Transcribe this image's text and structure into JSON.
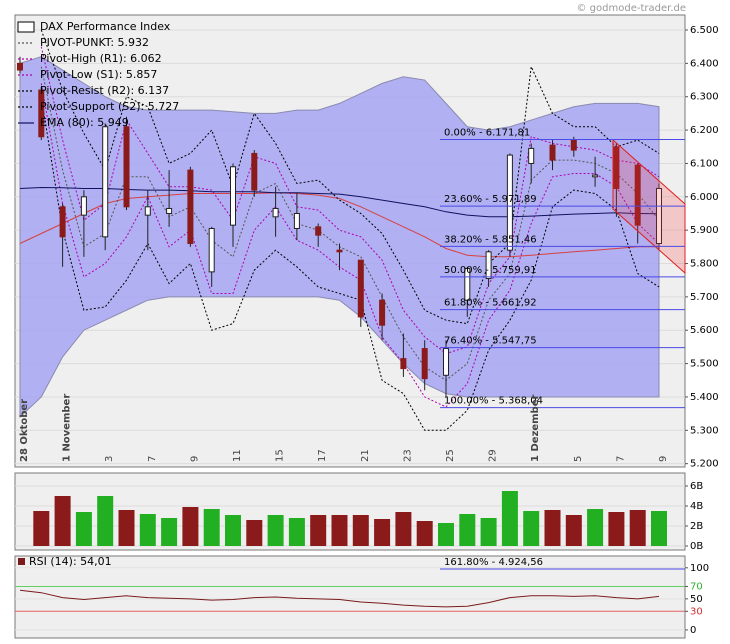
{
  "watermark": "© godmode-trader.de",
  "chart_data": [
    {
      "type": "candlestick",
      "categories": [
        "28 Oktober",
        null,
        "1 November",
        null,
        "3",
        null,
        "7",
        null,
        "9",
        null,
        "11",
        null,
        "15",
        null,
        "17",
        null,
        "21",
        null,
        "23",
        null,
        "25",
        null,
        "29",
        null,
        "1 Dezember",
        null,
        "5",
        null,
        "7",
        null,
        "9"
      ],
      "ylim": [
        5190,
        6545
      ],
      "yticks": [
        {
          "value": 6500,
          "label": "6.500"
        },
        {
          "value": 6400,
          "label": "6.400"
        },
        {
          "value": 6300,
          "label": "6.300"
        },
        {
          "value": 6200,
          "label": "6.200"
        },
        {
          "value": 6100,
          "label": "6.100"
        },
        {
          "value": 6000,
          "label": "6.000"
        },
        {
          "value": 5900,
          "label": "5.900"
        },
        {
          "value": 5800,
          "label": "5.800"
        },
        {
          "value": 5700,
          "label": "5.700"
        },
        {
          "value": 5600,
          "label": "5.600"
        },
        {
          "value": 5500,
          "label": "5.500"
        },
        {
          "value": 5400,
          "label": "5.400"
        },
        {
          "value": 5300,
          "label": "5.300"
        },
        {
          "value": 5200,
          "label": "5.200"
        }
      ],
      "grid": true,
      "candles": {
        "name": "DAX Performance Index",
        "up_color": "#22b022",
        "down_color": "#8b1a1a",
        "open": [
          6400,
          6320,
          5970,
          5945,
          5880,
          6210,
          5945,
          5950,
          6080,
          5775,
          5915,
          6130,
          5940,
          5905,
          5910,
          5840,
          5810,
          5690,
          5515,
          5545,
          5465,
          5690,
          5755,
          5840,
          6100,
          6155,
          6170,
          6060,
          6150,
          6095,
          5860
        ],
        "high": [
          6420,
          6330,
          5980,
          6020,
          6220,
          6240,
          6020,
          6080,
          6090,
          5910,
          6100,
          6140,
          6030,
          6010,
          5920,
          5860,
          5810,
          5710,
          5590,
          5570,
          5570,
          5790,
          5840,
          6130,
          6160,
          6170,
          6180,
          6120,
          6160,
          6100,
          6040
        ],
        "low": [
          6370,
          6170,
          5790,
          5820,
          5840,
          5960,
          5840,
          5910,
          5850,
          5730,
          5850,
          6000,
          5880,
          5870,
          5850,
          5780,
          5610,
          5570,
          5460,
          5420,
          5400,
          5640,
          5730,
          5820,
          6040,
          6080,
          6120,
          6030,
          5940,
          5860,
          5840
        ],
        "close": [
          6380,
          6180,
          5880,
          6000,
          6210,
          5970,
          5970,
          5965,
          5860,
          5905,
          6090,
          6020,
          5965,
          5950,
          5885,
          5835,
          5640,
          5615,
          5485,
          5455,
          5545,
          5785,
          5835,
          6125,
          6145,
          6110,
          6140,
          6065,
          6025,
          5915,
          6025
        ]
      },
      "band": {
        "color": "#a4a4f2",
        "upper": [
          6400,
          6420,
          6380,
          6340,
          6300,
          6270,
          6260,
          6260,
          6260,
          6260,
          6255,
          6250,
          6250,
          6260,
          6260,
          6280,
          6310,
          6340,
          6360,
          6350,
          6280,
          6210,
          6200,
          6210,
          6230,
          6250,
          6270,
          6280,
          6280,
          6280,
          6270
        ],
        "lower": [
          5340,
          5400,
          5520,
          5600,
          5630,
          5660,
          5690,
          5700,
          5700,
          5700,
          5700,
          5700,
          5700,
          5700,
          5700,
          5690,
          5640,
          5570,
          5500,
          5440,
          5410,
          5400,
          5400,
          5400,
          5400,
          5400,
          5400,
          5400,
          5400,
          5400,
          5400
        ]
      },
      "average": {
        "color": "#d84040",
        "values": [
          5860,
          5890,
          5920,
          5950,
          5980,
          5995,
          6000,
          6005,
          6010,
          6010,
          6010,
          6010,
          6012,
          6010,
          6005,
          5995,
          5970,
          5940,
          5910,
          5880,
          5845,
          5825,
          5820,
          5820,
          5825,
          5830,
          5835,
          5840,
          5845,
          5850,
          5850
        ]
      },
      "series": [
        {
          "name": "PIVOT-PUNKT: 5.932",
          "color": "#555555",
          "dash": "2,2",
          "values": [
            null,
            6390,
            6080,
            5850,
            5890,
            6060,
            6060,
            5940,
            5970,
            5870,
            5820,
            6010,
            6040,
            5920,
            5900,
            5850,
            5820,
            5700,
            5580,
            5490,
            5450,
            5500,
            5690,
            5770,
            6050,
            6110,
            6110,
            6100,
            6070,
            6010,
            5930
          ]
        },
        {
          "name": "Pivot-High (R1): 6.062",
          "color": "#b000b0",
          "dash": "2,2",
          "values": [
            null,
            6450,
            6170,
            5930,
            5980,
            6230,
            6130,
            6030,
            6030,
            6020,
            5930,
            6120,
            6100,
            5970,
            5960,
            5900,
            5880,
            5810,
            5660,
            5580,
            5530,
            5550,
            5740,
            5820,
            6180,
            6160,
            6150,
            6140,
            6110,
            6100,
            6060
          ]
        },
        {
          "name": "Pivot-Low (S1): 5.857",
          "color": "#b000b0",
          "dash": "2,2",
          "values": [
            null,
            6340,
            5980,
            5760,
            5800,
            5880,
            6000,
            5850,
            5900,
            5710,
            5710,
            5900,
            5970,
            5870,
            5840,
            5790,
            5750,
            5580,
            5500,
            5400,
            5370,
            5440,
            5630,
            5720,
            5920,
            6060,
            6070,
            6070,
            6030,
            5920,
            5860
          ]
        },
        {
          "name": "Pivot-Resist (R2): 6.137",
          "color": "#000000",
          "dash": "2,2",
          "values": [
            null,
            6500,
            6320,
            6190,
            6080,
            6300,
            6270,
            6100,
            6130,
            6200,
            6030,
            6250,
            6160,
            6040,
            6050,
            5990,
            5950,
            5890,
            5780,
            5660,
            5630,
            5620,
            5800,
            5860,
            6390,
            6250,
            6210,
            6210,
            6150,
            6170,
            6130
          ]
        },
        {
          "name": "Pivot-Support (S2): 5.727",
          "color": "#000000",
          "dash": "2,2",
          "values": [
            null,
            6300,
            5900,
            5660,
            5670,
            5750,
            5860,
            5740,
            5800,
            5600,
            5620,
            5780,
            5840,
            5790,
            5730,
            5710,
            5690,
            5450,
            5410,
            5300,
            5300,
            5360,
            5540,
            5630,
            5750,
            5970,
            6020,
            6010,
            5960,
            5770,
            5730
          ]
        },
        {
          "name": "EMA (80): 5.949",
          "color": "#101060",
          "dash": "none",
          "values": [
            6025,
            6028,
            6027,
            6025,
            6025,
            6022,
            6020,
            6020,
            6018,
            6015,
            6015,
            6015,
            6012,
            6012,
            6010,
            6008,
            6000,
            5990,
            5980,
            5970,
            5955,
            5945,
            5940,
            5940,
            5942,
            5945,
            5948,
            5950,
            5952,
            5950,
            5949
          ]
        }
      ],
      "fib_color": "#4a4ae6",
      "fib_levels": [
        {
          "value": 6171.81,
          "label": "0.00% - 6.171,81"
        },
        {
          "value": 5971.89,
          "label": "23.60% - 5.971,89"
        },
        {
          "value": 5851.46,
          "label": "38.20% - 5.851,46"
        },
        {
          "value": 5759.91,
          "label": "50.00% - 5.759,91"
        },
        {
          "value": 5661.92,
          "label": "61.80% - 5.661,92"
        },
        {
          "value": 5547.75,
          "label": "76.40% - 5.547,75"
        },
        {
          "value": 5368.04,
          "label": "100.00% - 5.368,04"
        }
      ]
    },
    {
      "type": "bar",
      "values": [
        null,
        3.5,
        5.0,
        3.4,
        5.0,
        3.6,
        3.2,
        2.8,
        3.9,
        3.7,
        3.1,
        2.6,
        3.1,
        2.8,
        3.1,
        3.1,
        3.1,
        2.7,
        3.4,
        2.5,
        2.3,
        3.2,
        2.8,
        5.5,
        3.5,
        3.6,
        3.1,
        3.7,
        3.4,
        3.6,
        3.5
      ],
      "ylim": [
        -0.4,
        7.3
      ],
      "yticks": [
        {
          "value": 6,
          "label": "6B"
        },
        {
          "value": 4,
          "label": "4B"
        },
        {
          "value": 2,
          "label": "2B"
        },
        {
          "value": 0,
          "label": "0B"
        }
      ],
      "grid": true
    },
    {
      "type": "line",
      "series": [
        {
          "name": "RSI (14): 54,01",
          "color": "#7a1a1a",
          "values": [
            64,
            60,
            52,
            49,
            52,
            55,
            52,
            51,
            50,
            48,
            49,
            52,
            53,
            51,
            50,
            49,
            45,
            43,
            40,
            38,
            37,
            38,
            44,
            52,
            55,
            55,
            54,
            55,
            52,
            50,
            54
          ]
        }
      ],
      "ylim": [
        -13,
        119
      ],
      "yticks": [
        100,
        70,
        50,
        30,
        0
      ],
      "ytick_colors": [
        "#000000",
        "#30b030",
        "#000000",
        "#d03030",
        "#000000"
      ],
      "grid_colors": [
        "#e2e2e2",
        "#60d060",
        "#e2e2e2",
        "#e06060",
        "#e2e2e2"
      ],
      "annotation": "161.80% - 4.924,56"
    }
  ]
}
